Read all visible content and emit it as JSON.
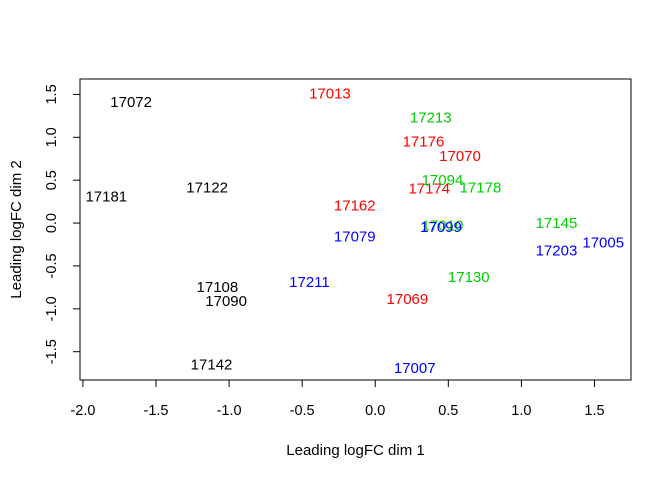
{
  "chart_data": {
    "type": "scatter",
    "title": "",
    "xlabel": "Leading logFC dim 1",
    "ylabel": "Leading logFC dim 2",
    "xlim": [
      -2.02,
      1.75
    ],
    "ylim": [
      -1.83,
      1.68
    ],
    "grid": false,
    "legend": "none",
    "x_ticks": [
      {
        "value": -2.0,
        "label": "-2.0"
      },
      {
        "value": -1.5,
        "label": "-1.5"
      },
      {
        "value": -1.0,
        "label": "-1.0"
      },
      {
        "value": -0.5,
        "label": "-0.5"
      },
      {
        "value": 0.0,
        "label": "0.0"
      },
      {
        "value": 0.5,
        "label": "0.5"
      },
      {
        "value": 1.0,
        "label": "1.0"
      },
      {
        "value": 1.5,
        "label": "1.5"
      }
    ],
    "y_ticks": [
      {
        "value": -1.5,
        "label": "-1.5"
      },
      {
        "value": -1.0,
        "label": "-1.0"
      },
      {
        "value": -0.5,
        "label": "-0.5"
      },
      {
        "value": 0.0,
        "label": "0.0"
      },
      {
        "value": 0.5,
        "label": "0.5"
      },
      {
        "value": 1.0,
        "label": "1.0"
      },
      {
        "value": 1.5,
        "label": "1.5"
      }
    ],
    "point_labels": [
      {
        "label": "17072",
        "x": -1.67,
        "y": 1.4,
        "color": "#000000"
      },
      {
        "label": "17181",
        "x": -1.84,
        "y": 0.3,
        "color": "#000000"
      },
      {
        "label": "17122",
        "x": -1.15,
        "y": 0.4,
        "color": "#000000"
      },
      {
        "label": "17108",
        "x": -1.08,
        "y": -0.76,
        "color": "#000000"
      },
      {
        "label": "17090",
        "x": -1.02,
        "y": -0.92,
        "color": "#000000"
      },
      {
        "label": "17142",
        "x": -1.12,
        "y": -1.66,
        "color": "#000000"
      },
      {
        "label": "17013",
        "x": -0.31,
        "y": 1.5,
        "color": "#ff0000"
      },
      {
        "label": "17176",
        "x": 0.33,
        "y": 0.94,
        "color": "#ff0000"
      },
      {
        "label": "17070",
        "x": 0.58,
        "y": 0.77,
        "color": "#ff0000"
      },
      {
        "label": "17174",
        "x": 0.37,
        "y": 0.39,
        "color": "#ff0000"
      },
      {
        "label": "17162",
        "x": -0.14,
        "y": 0.19,
        "color": "#ff0000"
      },
      {
        "label": "17069",
        "x": 0.22,
        "y": -0.9,
        "color": "#ff0000"
      },
      {
        "label": "17213",
        "x": 0.38,
        "y": 1.22,
        "color": "#00cd00"
      },
      {
        "label": "17094",
        "x": 0.46,
        "y": 0.49,
        "color": "#00cd00"
      },
      {
        "label": "17178",
        "x": 0.72,
        "y": 0.4,
        "color": "#00cd00"
      },
      {
        "label": "17145",
        "x": 1.24,
        "y": -0.01,
        "color": "#00cd00"
      },
      {
        "label": "17130",
        "x": 0.64,
        "y": -0.64,
        "color": "#00cd00"
      },
      {
        "label": "17010",
        "x": 0.46,
        "y": -0.04,
        "color": "#00cd00"
      },
      {
        "label": "17079",
        "x": -0.14,
        "y": -0.17,
        "color": "#0000ff"
      },
      {
        "label": "17211",
        "x": -0.45,
        "y": -0.7,
        "color": "#0000ff"
      },
      {
        "label": "17099",
        "x": 0.45,
        "y": -0.06,
        "color": "#0000ff"
      },
      {
        "label": "17203",
        "x": 1.24,
        "y": -0.33,
        "color": "#0000ff"
      },
      {
        "label": "17005",
        "x": 1.56,
        "y": -0.24,
        "color": "#0000ff"
      },
      {
        "label": "17007",
        "x": 0.27,
        "y": -1.7,
        "color": "#0000ff"
      }
    ]
  }
}
